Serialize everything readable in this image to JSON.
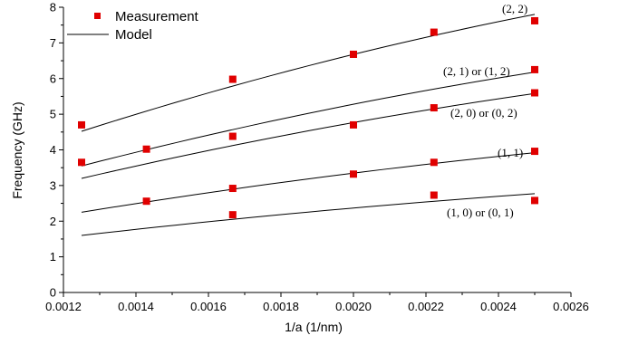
{
  "chart_data": {
    "type": "scatter",
    "xlabel": "1/a (1/nm)",
    "ylabel": "Frequency (GHz)",
    "xlim": [
      0.0012,
      0.0026
    ],
    "ylim": [
      0,
      8
    ],
    "xticks": [
      "0.0012",
      "0.0014",
      "0.0016",
      "0.0018",
      "0.0020",
      "0.0022",
      "0.0024",
      "0.0026"
    ],
    "yticks": [
      "0",
      "1",
      "2",
      "3",
      "4",
      "5",
      "6",
      "7",
      "8"
    ],
    "legend": {
      "position": "top-left",
      "entries": [
        "Measurement",
        "Model"
      ]
    },
    "grid": false,
    "measurement_color": "#e00000",
    "measurement": {
      "name": "Measurement",
      "groups": [
        {
          "x": [
            0.00125,
            0.001667,
            0.0025
          ],
          "y": [
            4.7,
            5.98,
            7.62
          ]
        },
        {
          "x": [
            0.00125,
            0.001429,
            0.001667,
            0.002,
            0.002222,
            0.0025
          ],
          "y": [
            3.65,
            4.02,
            4.38,
            6.68,
            7.3,
            6.25
          ]
        },
        {
          "x": [
            0.002,
            0.002222,
            0.0025
          ],
          "y": [
            4.7,
            5.18,
            5.6
          ]
        },
        {
          "x": [
            0.001429,
            0.001667,
            0.002,
            0.002222,
            0.0025
          ],
          "y": [
            2.56,
            2.92,
            3.32,
            3.65,
            3.96
          ]
        },
        {
          "x": [
            0.001667,
            0.002222,
            0.0025
          ],
          "y": [
            2.18,
            2.73,
            2.58
          ]
        }
      ]
    },
    "model": {
      "name": "Model",
      "curves": [
        {
          "label": "(2, 2)",
          "x": [
            0.00125,
            0.0025
          ],
          "y": [
            4.52,
            7.8
          ]
        },
        {
          "label": "(2, 1) or (1, 2)",
          "x": [
            0.00125,
            0.0025
          ],
          "y": [
            3.55,
            6.18
          ]
        },
        {
          "label": "(2, 0) or (0, 2)",
          "x": [
            0.00125,
            0.0025
          ],
          "y": [
            3.2,
            5.58
          ]
        },
        {
          "label": "(1, 1)",
          "x": [
            0.00125,
            0.0025
          ],
          "y": [
            2.25,
            3.92
          ]
        },
        {
          "label": "(1, 0) or (0, 1)",
          "x": [
            0.00125,
            0.0025
          ],
          "y": [
            1.6,
            2.77
          ]
        }
      ]
    }
  }
}
